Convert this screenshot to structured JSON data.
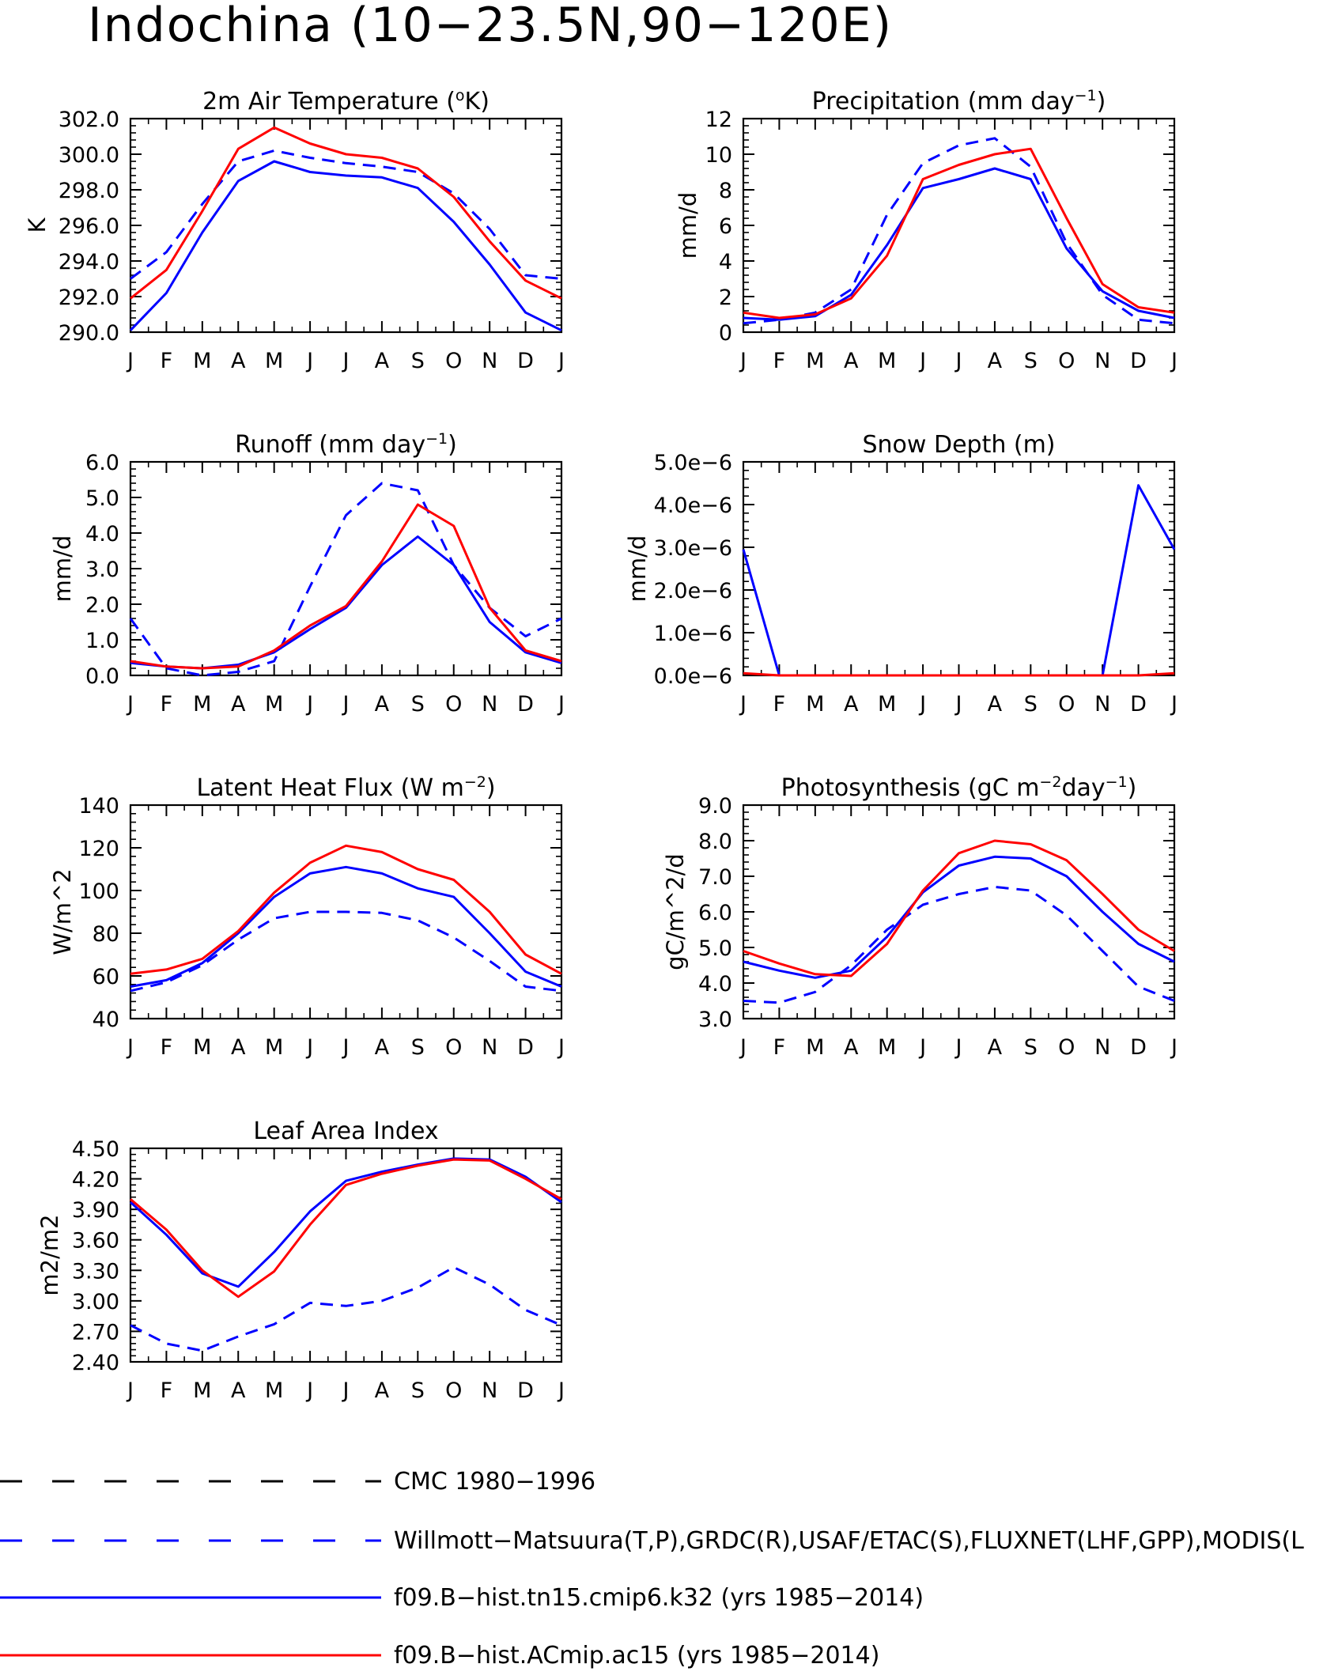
{
  "title": "Indochina (10−23.5N,90−120E)",
  "colors": {
    "obs": "#0000ff",
    "model_blue": "#0000ff",
    "model_red": "#ff0000",
    "axis": "#000000"
  },
  "months": [
    "J",
    "F",
    "M",
    "A",
    "M",
    "J",
    "J",
    "A",
    "S",
    "O",
    "N",
    "D",
    "J"
  ],
  "legend": [
    {
      "label": "CMC 1980−1996",
      "color": "#000000",
      "style": "long-dash"
    },
    {
      "label": "Willmott−Matsuura(T,P),GRDC(R),USAF/ETAC(S),FLUXNET(LHF,GPP),MODIS(L",
      "color": "#0000ff",
      "style": "long-dash"
    },
    {
      "label": "f09.B−hist.tn15.cmip6.k32 (yrs 1985−2014)",
      "color": "#0000ff",
      "style": "solid"
    },
    {
      "label": "f09.B−hist.ACmip.ac15 (yrs 1985−2014)",
      "color": "#ff0000",
      "style": "solid"
    }
  ],
  "chart_data": [
    {
      "type": "line",
      "title": "2m Air Temperature (",
      "title_sup": "o",
      "title_tail": "K)",
      "ylabel": "K",
      "ylim": [
        290,
        302
      ],
      "yticks": [
        "290.0",
        "292.0",
        "294.0",
        "296.0",
        "298.0",
        "300.0",
        "302.0"
      ],
      "ytick_values": [
        290,
        292,
        294,
        296,
        298,
        300,
        302
      ],
      "categories": [
        "J",
        "F",
        "M",
        "A",
        "M",
        "J",
        "J",
        "A",
        "S",
        "O",
        "N",
        "D",
        "J"
      ],
      "series": [
        {
          "style": "dashed",
          "color": "#0000ff",
          "values": [
            293.0,
            294.5,
            297.2,
            299.6,
            300.2,
            299.8,
            299.5,
            299.3,
            299.0,
            297.8,
            295.8,
            293.2,
            293.0
          ]
        },
        {
          "style": "solid",
          "color": "#0000ff",
          "values": [
            290.1,
            292.2,
            295.6,
            298.5,
            299.6,
            299.0,
            298.8,
            298.7,
            298.1,
            296.2,
            293.8,
            291.1,
            290.1
          ]
        },
        {
          "style": "solid",
          "color": "#ff0000",
          "values": [
            291.9,
            293.5,
            296.8,
            300.3,
            301.5,
            300.6,
            300.0,
            299.8,
            299.2,
            297.6,
            295.1,
            292.9,
            291.9
          ]
        }
      ]
    },
    {
      "type": "line",
      "title": "Precipitation (mm day",
      "title_sup": "−1",
      "title_tail": ")",
      "ylabel": "mm/d",
      "ylim": [
        0,
        12
      ],
      "yticks": [
        "0",
        "2",
        "4",
        "6",
        "8",
        "10",
        "12"
      ],
      "ytick_values": [
        0,
        2,
        4,
        6,
        8,
        10,
        12
      ],
      "categories": [
        "J",
        "F",
        "M",
        "A",
        "M",
        "J",
        "J",
        "A",
        "S",
        "O",
        "N",
        "D",
        "J"
      ],
      "series": [
        {
          "style": "dashed",
          "color": "#0000ff",
          "values": [
            0.5,
            0.7,
            1.1,
            2.4,
            6.6,
            9.5,
            10.5,
            10.9,
            9.3,
            5.0,
            2.1,
            0.7,
            0.5
          ]
        },
        {
          "style": "solid",
          "color": "#0000ff",
          "values": [
            0.8,
            0.7,
            0.9,
            2.1,
            4.9,
            8.1,
            8.6,
            9.2,
            8.6,
            4.7,
            2.3,
            1.2,
            0.8
          ]
        },
        {
          "style": "solid",
          "color": "#ff0000",
          "values": [
            1.1,
            0.8,
            1.0,
            1.9,
            4.3,
            8.6,
            9.4,
            10.0,
            10.3,
            6.4,
            2.7,
            1.4,
            1.1
          ]
        }
      ]
    },
    {
      "type": "line",
      "title": "Runoff (mm day",
      "title_sup": "−1",
      "title_tail": ")",
      "ylabel": "mm/d",
      "ylim": [
        0,
        6
      ],
      "yticks": [
        "0.0",
        "1.0",
        "2.0",
        "3.0",
        "4.0",
        "5.0",
        "6.0"
      ],
      "ytick_values": [
        0,
        1,
        2,
        3,
        4,
        5,
        6
      ],
      "categories": [
        "J",
        "F",
        "M",
        "A",
        "M",
        "J",
        "J",
        "A",
        "S",
        "O",
        "N",
        "D",
        "J"
      ],
      "series": [
        {
          "style": "dashed",
          "color": "#0000ff",
          "values": [
            1.6,
            0.2,
            0.0,
            0.1,
            0.4,
            2.5,
            4.5,
            5.4,
            5.2,
            3.1,
            1.9,
            1.1,
            1.6
          ]
        },
        {
          "style": "solid",
          "color": "#0000ff",
          "values": [
            0.35,
            0.25,
            0.2,
            0.3,
            0.65,
            1.3,
            1.9,
            3.1,
            3.9,
            3.1,
            1.5,
            0.65,
            0.35
          ]
        },
        {
          "style": "solid",
          "color": "#ff0000",
          "values": [
            0.4,
            0.25,
            0.2,
            0.25,
            0.7,
            1.4,
            1.95,
            3.2,
            4.8,
            4.2,
            1.9,
            0.7,
            0.4
          ]
        }
      ]
    },
    {
      "type": "line",
      "title": "Snow Depth (m)",
      "title_sup": "",
      "title_tail": "",
      "ylabel": "mm/d",
      "ylim": [
        0,
        5
      ],
      "yticks": [
        "0.0e−6",
        "1.0e−6",
        "2.0e−6",
        "3.0e−6",
        "4.0e−6",
        "5.0e−6"
      ],
      "ytick_values": [
        0,
        1,
        2,
        3,
        4,
        5
      ],
      "y_scale_note": "values in units of 1e-6",
      "categories": [
        "J",
        "F",
        "M",
        "A",
        "M",
        "J",
        "J",
        "A",
        "S",
        "O",
        "N",
        "D",
        "J"
      ],
      "series": [
        {
          "style": "solid",
          "color": "#0000ff",
          "values": [
            2.95,
            0.0,
            0.0,
            0.0,
            0.0,
            0.0,
            0.0,
            0.0,
            0.0,
            0.0,
            0.0,
            4.45,
            2.95
          ]
        },
        {
          "style": "solid",
          "color": "#ff0000",
          "values": [
            0.05,
            0.0,
            0.0,
            0.0,
            0.0,
            0.0,
            0.0,
            0.0,
            0.0,
            0.0,
            0.0,
            0.0,
            0.05
          ]
        }
      ]
    },
    {
      "type": "line",
      "title": "Latent Heat Flux (W m",
      "title_sup": "−2",
      "title_tail": ")",
      "ylabel": "W/m^2",
      "ylim": [
        40,
        140
      ],
      "yticks": [
        "40",
        "60",
        "80",
        "100",
        "120",
        "140"
      ],
      "ytick_values": [
        40,
        60,
        80,
        100,
        120,
        140
      ],
      "categories": [
        "J",
        "F",
        "M",
        "A",
        "M",
        "J",
        "J",
        "A",
        "S",
        "O",
        "N",
        "D",
        "J"
      ],
      "series": [
        {
          "style": "dashed",
          "color": "#0000ff",
          "values": [
            53,
            57,
            65,
            77,
            87,
            90,
            90,
            89.5,
            86,
            78,
            67,
            55,
            53
          ]
        },
        {
          "style": "solid",
          "color": "#0000ff",
          "values": [
            55,
            58,
            66,
            80,
            97,
            108,
            111,
            108,
            101,
            97,
            80,
            62,
            55
          ]
        },
        {
          "style": "solid",
          "color": "#ff0000",
          "values": [
            61,
            63,
            68,
            81,
            99,
            113,
            121,
            118,
            110,
            105,
            90,
            70,
            61
          ]
        }
      ]
    },
    {
      "type": "line",
      "title": "Photosynthesis (gC m",
      "title_sup": "−2",
      "title_tail": "day",
      "title_sup2": "−1",
      "title_tail2": ")",
      "ylabel": "gC/m^2/d",
      "ylim": [
        3,
        9
      ],
      "yticks": [
        "3.0",
        "4.0",
        "5.0",
        "6.0",
        "7.0",
        "8.0",
        "9.0"
      ],
      "ytick_values": [
        3,
        4,
        5,
        6,
        7,
        8,
        9
      ],
      "categories": [
        "J",
        "F",
        "M",
        "A",
        "M",
        "J",
        "J",
        "A",
        "S",
        "O",
        "N",
        "D",
        "J"
      ],
      "series": [
        {
          "style": "dashed",
          "color": "#0000ff",
          "values": [
            3.5,
            3.45,
            3.75,
            4.5,
            5.5,
            6.2,
            6.5,
            6.7,
            6.6,
            5.9,
            4.9,
            3.9,
            3.5
          ]
        },
        {
          "style": "solid",
          "color": "#0000ff",
          "values": [
            4.6,
            4.35,
            4.15,
            4.35,
            5.3,
            6.55,
            7.3,
            7.55,
            7.5,
            7.0,
            6.0,
            5.1,
            4.6
          ]
        },
        {
          "style": "solid",
          "color": "#ff0000",
          "values": [
            4.9,
            4.55,
            4.25,
            4.2,
            5.1,
            6.6,
            7.65,
            8.0,
            7.9,
            7.45,
            6.5,
            5.5,
            4.9
          ]
        }
      ]
    },
    {
      "type": "line",
      "title": "Leaf Area Index",
      "title_sup": "",
      "title_tail": "",
      "ylabel": "m2/m2",
      "ylim": [
        2.4,
        4.5
      ],
      "yticks": [
        "2.40",
        "2.70",
        "3.00",
        "3.30",
        "3.60",
        "3.90",
        "4.20",
        "4.50"
      ],
      "ytick_values": [
        2.4,
        2.7,
        3.0,
        3.3,
        3.6,
        3.9,
        4.2,
        4.5
      ],
      "categories": [
        "J",
        "F",
        "M",
        "A",
        "M",
        "J",
        "J",
        "A",
        "S",
        "O",
        "N",
        "D",
        "J"
      ],
      "series": [
        {
          "style": "dashed",
          "color": "#0000ff",
          "values": [
            2.76,
            2.58,
            2.51,
            2.65,
            2.77,
            2.98,
            2.95,
            3.0,
            3.13,
            3.33,
            3.16,
            2.91,
            2.76
          ]
        },
        {
          "style": "solid",
          "color": "#0000ff",
          "values": [
            3.97,
            3.65,
            3.27,
            3.14,
            3.48,
            3.88,
            4.18,
            4.27,
            4.34,
            4.4,
            4.39,
            4.22,
            3.97
          ]
        },
        {
          "style": "solid",
          "color": "#ff0000",
          "values": [
            4.0,
            3.7,
            3.3,
            3.04,
            3.29,
            3.75,
            4.14,
            4.25,
            4.33,
            4.39,
            4.38,
            4.2,
            4.0
          ]
        }
      ]
    }
  ]
}
